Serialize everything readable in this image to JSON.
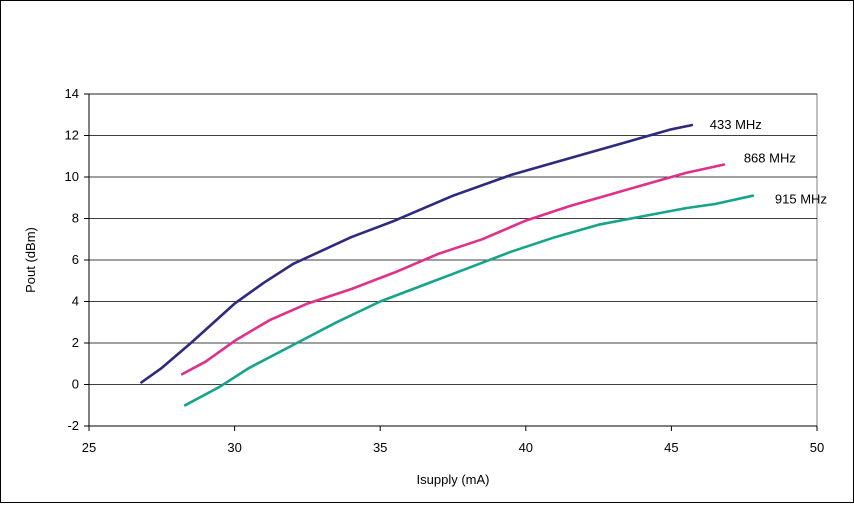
{
  "chart_data": {
    "type": "line",
    "title": "",
    "xlabel": "Isupply (mA)",
    "ylabel": "Pout (dBm)",
    "xlim": [
      25,
      50
    ],
    "ylim": [
      -2,
      14
    ],
    "xticks": [
      25,
      30,
      35,
      40,
      45,
      50
    ],
    "yticks": [
      -2,
      0,
      2,
      4,
      6,
      8,
      10,
      12,
      14
    ],
    "grid": "horizontal",
    "legend": "none",
    "series": [
      {
        "name": "433 MHz",
        "color": "#2e2a7f",
        "x": [
          26.8,
          27.5,
          28.5,
          30.0,
          31.0,
          32.0,
          34.0,
          35.5,
          37.5,
          39.5,
          41.5,
          43.5,
          45.0,
          45.7
        ],
        "y": [
          0.1,
          0.8,
          2.0,
          3.9,
          4.9,
          5.8,
          7.1,
          7.9,
          9.1,
          10.1,
          10.9,
          11.7,
          12.3,
          12.5
        ]
      },
      {
        "name": "868 MHz",
        "color": "#e0308a",
        "x": [
          28.2,
          29.0,
          30.0,
          31.2,
          32.5,
          34.0,
          35.5,
          37.0,
          38.5,
          40.0,
          41.5,
          43.0,
          44.5,
          45.5,
          46.8
        ],
        "y": [
          0.5,
          1.1,
          2.1,
          3.1,
          3.9,
          4.6,
          5.4,
          6.3,
          7.0,
          7.9,
          8.6,
          9.2,
          9.8,
          10.2,
          10.6
        ]
      },
      {
        "name": "915 MHz",
        "color": "#16a48a",
        "x": [
          28.3,
          29.5,
          30.5,
          32.0,
          33.5,
          35.0,
          36.5,
          38.0,
          39.5,
          41.0,
          42.5,
          44.0,
          45.5,
          46.5,
          47.8
        ],
        "y": [
          -1.0,
          -0.1,
          0.8,
          1.9,
          3.0,
          4.0,
          4.8,
          5.6,
          6.4,
          7.1,
          7.7,
          8.1,
          8.5,
          8.7,
          9.1
        ]
      }
    ]
  }
}
